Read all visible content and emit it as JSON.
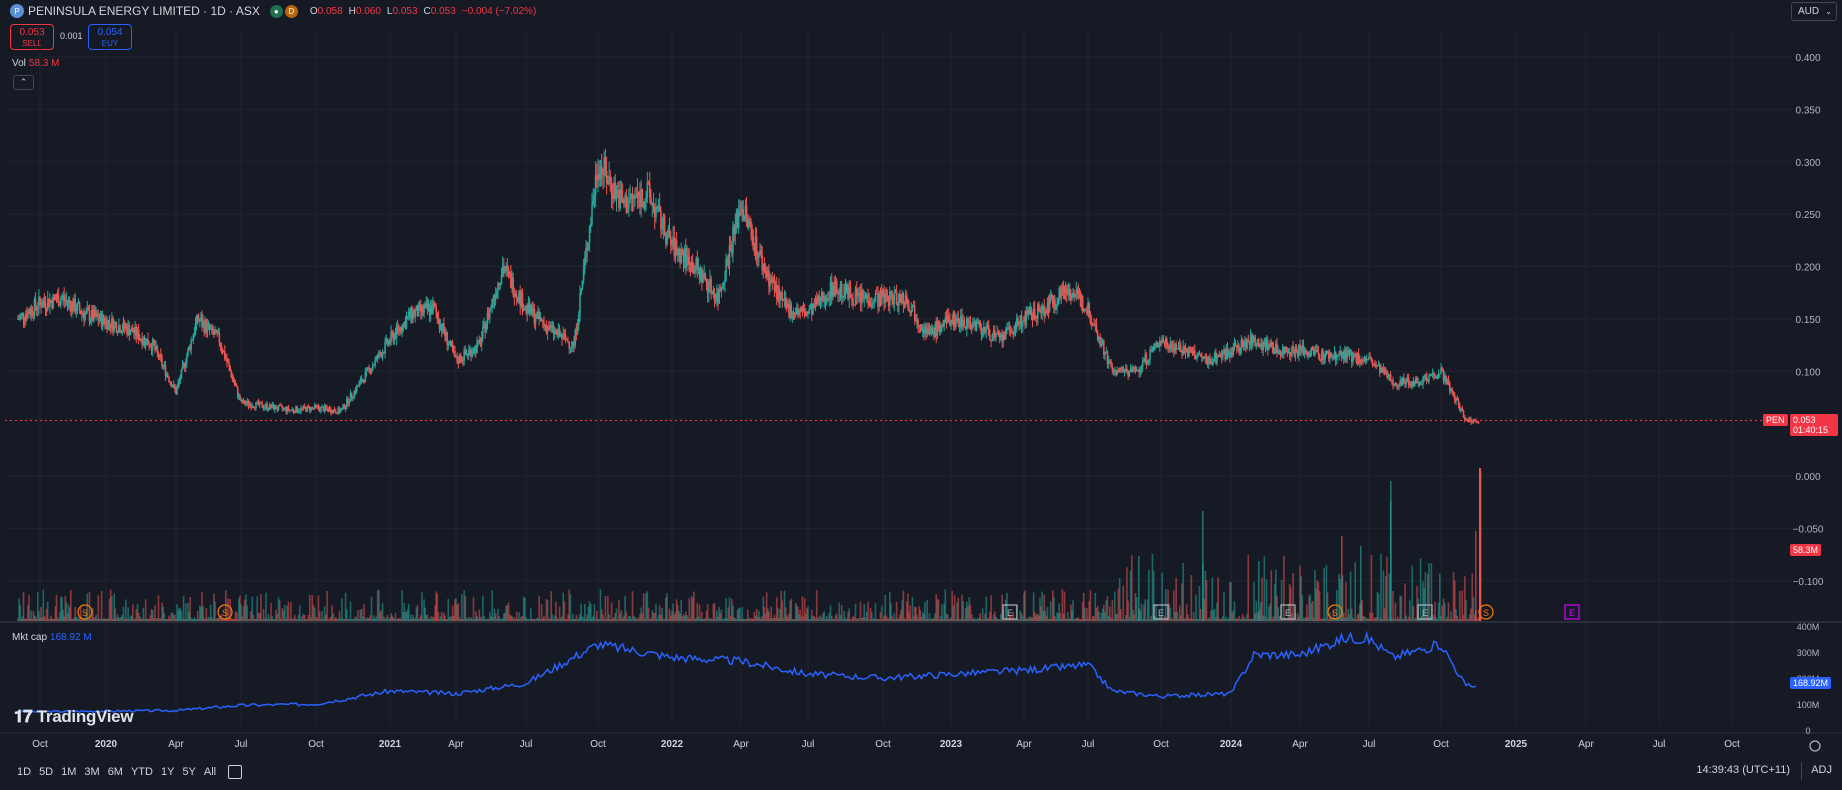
{
  "header": {
    "logo_text": "P",
    "symbol_title": "PENINSULA ENERGY LIMITED · 1D · ASX",
    "status_dot_label": "D",
    "ohlc": [
      {
        "k": "O",
        "v": "0.058"
      },
      {
        "k": "H",
        "v": "0.060"
      },
      {
        "k": "L",
        "v": "0.053"
      },
      {
        "k": "C",
        "v": "0.053"
      },
      {
        "k": "",
        "v": "−0.004 (−7.02%)"
      }
    ]
  },
  "trade": {
    "sell_price": "0.053",
    "sell_label": "SELL",
    "spread": "0.001",
    "buy_price": "0.054",
    "buy_label": "BUY"
  },
  "volume_legend": {
    "label": "Vol",
    "value": "58.3 M"
  },
  "currency": {
    "value": "AUD"
  },
  "market_cap_legend": {
    "label": "Mkt cap",
    "value": "168.92 M"
  },
  "brand": {
    "name": "TradingView"
  },
  "price_tags": {
    "symbol": "PEN",
    "price": "0.053",
    "countdown": "01:40:15",
    "volume": "58.3M",
    "market_cap": "168.92M"
  },
  "bottom_bar": {
    "timeframes": [
      "1D",
      "5D",
      "1M",
      "3M",
      "6M",
      "YTD",
      "1Y",
      "5Y",
      "All"
    ],
    "clock": "14:39:43 (UTC+11)",
    "adj": "ADJ"
  },
  "colors": {
    "up": "#26a69a",
    "down": "#ef5350",
    "mcap": "#2962ff",
    "bg": "#161a25",
    "grid": "#1f2430"
  },
  "chart_data": [
    {
      "type": "candlestick",
      "title": "PENINSULA ENERGY LIMITED · 1D · ASX",
      "price_axis_ticks": [
        "0.400",
        "0.350",
        "0.300",
        "0.250",
        "0.200",
        "0.150",
        "0.100",
        "0.000",
        "−0.050",
        "−0.100"
      ],
      "x_axis_ticks": [
        "Oct",
        "2020",
        "Apr",
        "Jul",
        "Oct",
        "2021",
        "Apr",
        "Jul",
        "Oct",
        "2022",
        "Apr",
        "Jul",
        "Oct",
        "2023",
        "Apr",
        "Jul",
        "Oct",
        "2024",
        "Apr",
        "Jul",
        "Oct",
        "2025",
        "Apr",
        "Jul",
        "Oct"
      ],
      "ylim": [
        -0.13,
        0.42
      ],
      "close_path": {
        "x": [
          "2019-09",
          "2019-10",
          "2019-11",
          "2019-12",
          "2020-02",
          "2020-03",
          "2020-04",
          "2020-05",
          "2020-06",
          "2020-07",
          "2020-09",
          "2020-10",
          "2020-11",
          "2021-01",
          "2021-02",
          "2021-03",
          "2021-04",
          "2021-05",
          "2021-06",
          "2021-07",
          "2021-08",
          "2021-09",
          "2021-10",
          "2021-11",
          "2021-12",
          "2022-01",
          "2022-02",
          "2022-03",
          "2022-04",
          "2022-05",
          "2022-06",
          "2022-07",
          "2022-08",
          "2022-09",
          "2022-10",
          "2022-11",
          "2022-12",
          "2023-01",
          "2023-02",
          "2023-03",
          "2023-04",
          "2023-05",
          "2023-06",
          "2023-07",
          "2023-08",
          "2023-09",
          "2023-10",
          "2023-11",
          "2023-12",
          "2024-01",
          "2024-02",
          "2024-03",
          "2024-04",
          "2024-05",
          "2024-06",
          "2024-07",
          "2024-08",
          "2024-09",
          "2024-10",
          "2024-11"
        ],
        "y": [
          0.15,
          0.165,
          0.17,
          0.155,
          0.14,
          0.125,
          0.08,
          0.15,
          0.13,
          0.07,
          0.063,
          0.065,
          0.062,
          0.13,
          0.155,
          0.16,
          0.11,
          0.125,
          0.2,
          0.16,
          0.14,
          0.125,
          0.3,
          0.26,
          0.27,
          0.22,
          0.2,
          0.17,
          0.26,
          0.2,
          0.16,
          0.155,
          0.18,
          0.17,
          0.17,
          0.17,
          0.135,
          0.15,
          0.145,
          0.13,
          0.15,
          0.16,
          0.18,
          0.16,
          0.1,
          0.1,
          0.13,
          0.12,
          0.11,
          0.12,
          0.13,
          0.12,
          0.12,
          0.115,
          0.115,
          0.11,
          0.09,
          0.09,
          0.1,
          0.053
        ]
      },
      "last_price": 0.053
    },
    {
      "type": "area",
      "title": "Mkt cap",
      "axis_ticks": [
        "400M",
        "300M",
        "200M",
        "100M",
        "0"
      ],
      "ylim": [
        0,
        400
      ],
      "x": [
        "2019-09",
        "2020-04",
        "2020-07",
        "2020-10",
        "2021-01",
        "2021-04",
        "2021-07",
        "2021-10",
        "2022-01",
        "2022-04",
        "2022-07",
        "2022-10",
        "2023-01",
        "2023-04",
        "2023-07",
        "2023-08",
        "2023-10",
        "2024-01",
        "2024-02",
        "2024-04",
        "2024-06",
        "2024-07",
        "2024-08",
        "2024-10",
        "2024-11"
      ],
      "y": [
        70,
        75,
        95,
        100,
        150,
        140,
        180,
        330,
        280,
        265,
        215,
        200,
        215,
        230,
        250,
        150,
        130,
        140,
        290,
        290,
        355,
        350,
        280,
        330,
        168.92
      ]
    }
  ]
}
